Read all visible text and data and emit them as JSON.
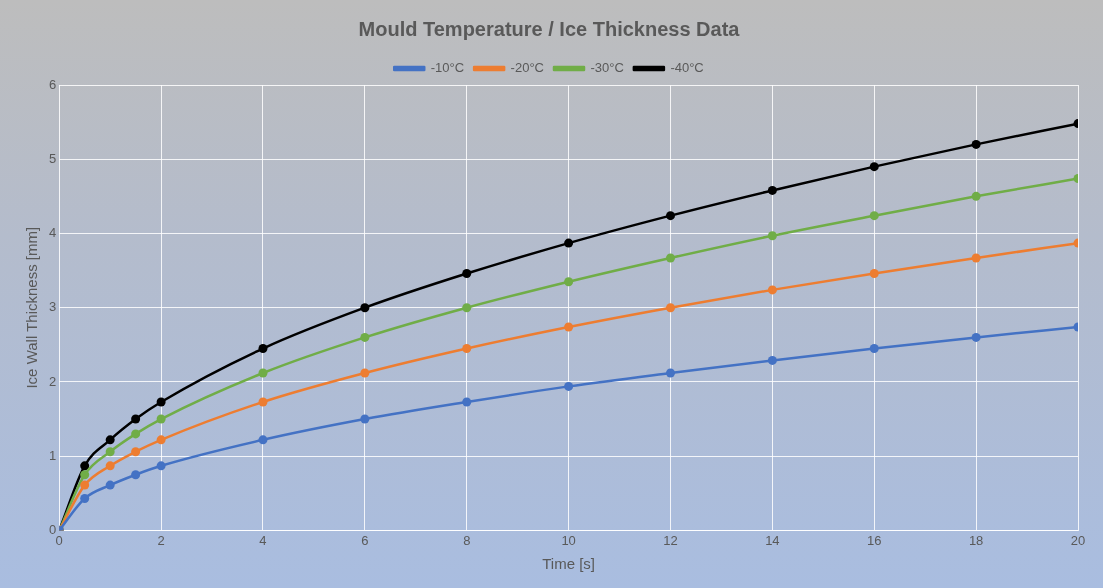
{
  "chart_data": {
    "type": "line",
    "title": "Mould Temperature / Ice Thickness Data",
    "xlabel": "Time [s]",
    "ylabel": "Ice Wall Thickness [mm]",
    "x": [
      0,
      0.5,
      1,
      1.5,
      2,
      4,
      6,
      8,
      10,
      12,
      14,
      16,
      18,
      20
    ],
    "series": [
      {
        "name": "-10°C",
        "color": "#4472c4",
        "values": [
          0,
          0.43,
          0.61,
          0.75,
          0.87,
          1.22,
          1.5,
          1.73,
          1.94,
          2.12,
          2.29,
          2.45,
          2.6,
          2.74
        ]
      },
      {
        "name": "-20°C",
        "color": "#ed7d31",
        "values": [
          0,
          0.61,
          0.87,
          1.06,
          1.22,
          1.73,
          2.12,
          2.45,
          2.74,
          3.0,
          3.24,
          3.46,
          3.67,
          3.87
        ]
      },
      {
        "name": "-30°C",
        "color": "#70ad47",
        "values": [
          0,
          0.75,
          1.06,
          1.3,
          1.5,
          2.12,
          2.6,
          3.0,
          3.35,
          3.67,
          3.97,
          4.24,
          4.5,
          4.74
        ]
      },
      {
        "name": "-40°C",
        "color": "#000000",
        "values": [
          0,
          0.87,
          1.22,
          1.5,
          1.73,
          2.45,
          3.0,
          3.46,
          3.87,
          4.24,
          4.58,
          4.9,
          5.2,
          5.48
        ]
      }
    ],
    "xlim": [
      0,
      20
    ],
    "xticks": [
      0,
      2,
      4,
      6,
      8,
      10,
      12,
      14,
      16,
      18,
      20
    ],
    "ylim": [
      0,
      6
    ],
    "yticks": [
      0,
      1,
      2,
      3,
      4,
      5,
      6
    ],
    "grid": true,
    "legend": "top",
    "marker": "circle",
    "line_style": "solid"
  }
}
